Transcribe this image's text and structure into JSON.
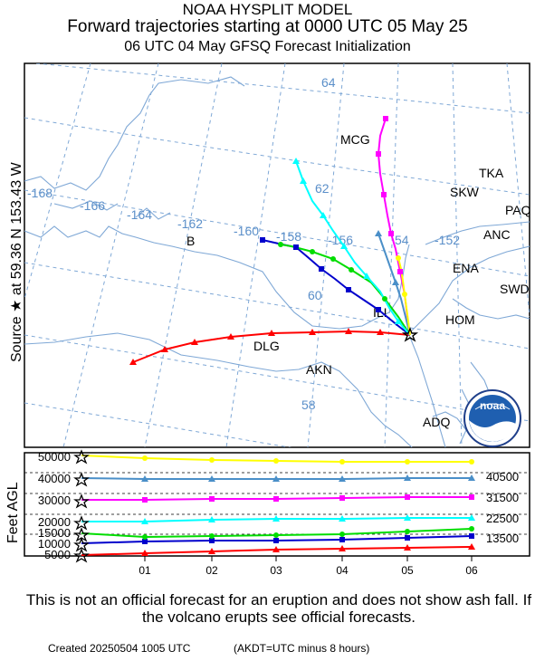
{
  "header": {
    "title": "NOAA HYSPLIT MODEL",
    "subtitle": "Forward trajectories starting at 0000 UTC 05 May 25",
    "init": "06 UTC 04 May    GFSQ  Forecast Initialization"
  },
  "side_label": "Source ★ at   59.36 N  153.43 W",
  "height_axis_label": "Feet AGL",
  "map": {
    "longitude_labels": [
      "-168",
      "-166",
      "-164",
      "-162",
      "-160",
      "-158",
      "-156",
      "54",
      "-152"
    ],
    "latitude_labels": [
      "64",
      "62",
      "60",
      "58"
    ],
    "stations": [
      "MCG",
      "TKA",
      "SKW",
      "PAQ",
      "ANC",
      "B",
      "ENA",
      "SWD",
      "ILI",
      "HOM",
      "DLG",
      "AKN",
      "ADQ"
    ],
    "grid_color": "#7fa8d6",
    "coast_color": "#7fa8d6",
    "label_color": "#5b8fc9"
  },
  "chart_data": {
    "type": "line",
    "x": [
      "01",
      "02",
      "03",
      "04",
      "05",
      "06"
    ],
    "left_axis_ticks": [
      "50000",
      "40000",
      "30000",
      "20000",
      "15000",
      "10000",
      "5000"
    ],
    "right_axis_ticks": [
      "40500",
      "31500",
      "22500",
      "13500"
    ],
    "series": [
      {
        "color": "#ff0000",
        "marker": "triangle",
        "start_height_ft": 5000
      },
      {
        "color": "#0000cc",
        "marker": "square",
        "start_height_ft": 10000
      },
      {
        "color": "#00dd00",
        "marker": "circle",
        "start_height_ft": 15000
      },
      {
        "color": "#00ffff",
        "marker": "triangle",
        "start_height_ft": 20000
      },
      {
        "color": "#ff00ff",
        "marker": "square",
        "start_height_ft": 30000
      },
      {
        "color": "#4a8fc8",
        "marker": "triangle",
        "start_height_ft": 40000
      },
      {
        "color": "#ffff00",
        "marker": "circle",
        "start_height_ft": 50000
      }
    ]
  },
  "logo": {
    "text": "noaa"
  },
  "disclaimer": "This is not an official forecast for an eruption and does not show ash fall. If the volcano erupts see official forecasts.",
  "footer": {
    "created": "Created 20250504 1005 UTC",
    "timezone_note": "(AKDT=UTC minus 8 hours)"
  }
}
